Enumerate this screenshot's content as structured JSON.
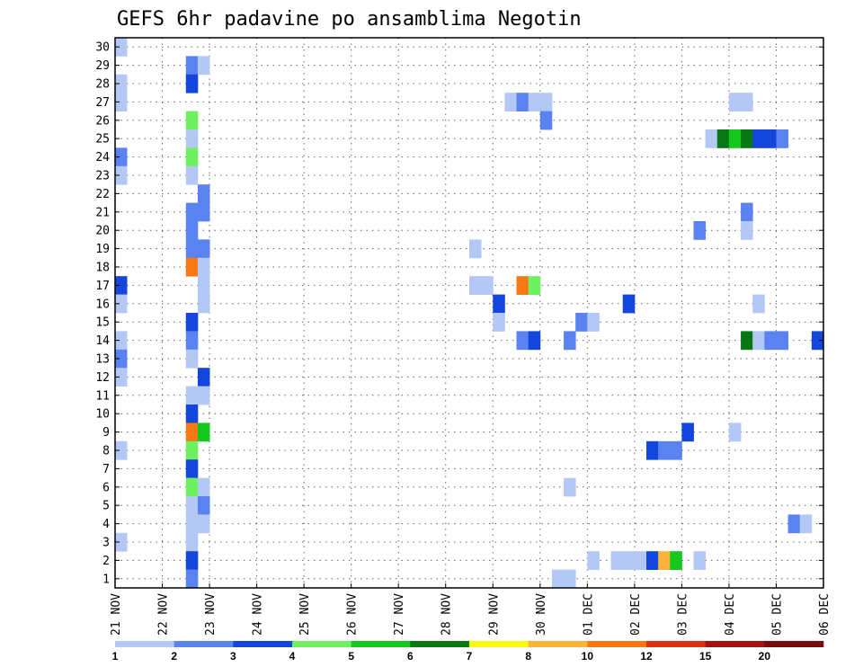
{
  "chart_data": {
    "type": "heatmap",
    "title": "GEFS 6hr padavine po ansamblima Negotin",
    "xlabel": "",
    "ylabel": "",
    "x_tick_labels": [
      "21 NOV",
      "22 NOV",
      "23 NOV",
      "24 NOV",
      "25 NOV",
      "26 NOV",
      "27 NOV",
      "28 NOV",
      "29 NOV",
      "30 NOV",
      "01 DEC",
      "02 DEC",
      "03 DEC",
      "04 DEC",
      "05 DEC",
      "06 DEC"
    ],
    "x_range_steps": [
      0,
      60
    ],
    "y_tick_labels": [
      1,
      2,
      3,
      4,
      5,
      6,
      7,
      8,
      9,
      10,
      11,
      12,
      13,
      14,
      15,
      16,
      17,
      18,
      19,
      20,
      21,
      22,
      23,
      24,
      25,
      26,
      27,
      28,
      29,
      30
    ],
    "y_range": [
      0,
      30
    ],
    "grid": true,
    "legend": {
      "placement": "bottom",
      "labels": [
        "1",
        "2",
        "3",
        "4",
        "5",
        "6",
        "7",
        "8",
        "10",
        "12",
        "15",
        "20"
      ],
      "colors": [
        "#b4c8f5",
        "#5a82f0",
        "#1446dc",
        "#6ef060",
        "#14c81e",
        "#087814",
        "#fafa14",
        "#fab43c",
        "#f57814",
        "#dc3214",
        "#a01414",
        "#780a0a"
      ]
    },
    "cells": [
      {
        "member": 30,
        "step": 1,
        "level": 1
      },
      {
        "member": 29,
        "step": 7,
        "level": 2
      },
      {
        "member": 29,
        "step": 8,
        "level": 1
      },
      {
        "member": 28,
        "step": 1,
        "level": 1
      },
      {
        "member": 28,
        "step": 7,
        "level": 3
      },
      {
        "member": 27,
        "step": 1,
        "level": 1
      },
      {
        "member": 27,
        "step": 34,
        "level": 1
      },
      {
        "member": 27,
        "step": 35,
        "level": 2
      },
      {
        "member": 27,
        "step": 36,
        "level": 1
      },
      {
        "member": 27,
        "step": 37,
        "level": 1
      },
      {
        "member": 27,
        "step": 53,
        "level": 1
      },
      {
        "member": 27,
        "step": 54,
        "level": 1
      },
      {
        "member": 26,
        "step": 7,
        "level": 4
      },
      {
        "member": 26,
        "step": 37,
        "level": 2
      },
      {
        "member": 25,
        "step": 7,
        "level": 1
      },
      {
        "member": 25,
        "step": 51,
        "level": 1
      },
      {
        "member": 25,
        "step": 52,
        "level": 6
      },
      {
        "member": 25,
        "step": 53,
        "level": 5
      },
      {
        "member": 25,
        "step": 54,
        "level": 6
      },
      {
        "member": 25,
        "step": 55,
        "level": 3
      },
      {
        "member": 25,
        "step": 56,
        "level": 3
      },
      {
        "member": 25,
        "step": 57,
        "level": 2
      },
      {
        "member": 24,
        "step": 1,
        "level": 2
      },
      {
        "member": 24,
        "step": 7,
        "level": 4
      },
      {
        "member": 23,
        "step": 1,
        "level": 1
      },
      {
        "member": 23,
        "step": 7,
        "level": 1
      },
      {
        "member": 22,
        "step": 8,
        "level": 2
      },
      {
        "member": 21,
        "step": 7,
        "level": 2
      },
      {
        "member": 21,
        "step": 8,
        "level": 2
      },
      {
        "member": 21,
        "step": 54,
        "level": 2
      },
      {
        "member": 20,
        "step": 7,
        "level": 2
      },
      {
        "member": 20,
        "step": 54,
        "level": 1
      },
      {
        "member": 20,
        "step": 50,
        "level": 2
      },
      {
        "member": 19,
        "step": 7,
        "level": 2
      },
      {
        "member": 19,
        "step": 8,
        "level": 2
      },
      {
        "member": 19,
        "step": 31,
        "level": 1
      },
      {
        "member": 18,
        "step": 7,
        "level": 9
      },
      {
        "member": 18,
        "step": 8,
        "level": 1
      },
      {
        "member": 17,
        "step": 1,
        "level": 3
      },
      {
        "member": 17,
        "step": 8,
        "level": 1
      },
      {
        "member": 17,
        "step": 31,
        "level": 1
      },
      {
        "member": 17,
        "step": 32,
        "level": 1
      },
      {
        "member": 17,
        "step": 35,
        "level": 9
      },
      {
        "member": 17,
        "step": 36,
        "level": 4
      },
      {
        "member": 16,
        "step": 1,
        "level": 1
      },
      {
        "member": 16,
        "step": 8,
        "level": 1
      },
      {
        "member": 16,
        "step": 33,
        "level": 3
      },
      {
        "member": 16,
        "step": 44,
        "level": 3
      },
      {
        "member": 16,
        "step": 55,
        "level": 1
      },
      {
        "member": 15,
        "step": 7,
        "level": 3
      },
      {
        "member": 15,
        "step": 33,
        "level": 1
      },
      {
        "member": 15,
        "step": 40,
        "level": 2
      },
      {
        "member": 15,
        "step": 41,
        "level": 1
      },
      {
        "member": 14,
        "step": 1,
        "level": 1
      },
      {
        "member": 14,
        "step": 7,
        "level": 2
      },
      {
        "member": 14,
        "step": 35,
        "level": 2
      },
      {
        "member": 14,
        "step": 36,
        "level": 3
      },
      {
        "member": 14,
        "step": 39,
        "level": 2
      },
      {
        "member": 14,
        "step": 54,
        "level": 6
      },
      {
        "member": 14,
        "step": 55,
        "level": 1
      },
      {
        "member": 14,
        "step": 56,
        "level": 2
      },
      {
        "member": 14,
        "step": 57,
        "level": 2
      },
      {
        "member": 14,
        "step": 60,
        "level": 3
      },
      {
        "member": 13,
        "step": 1,
        "level": 2
      },
      {
        "member": 13,
        "step": 7,
        "level": 1
      },
      {
        "member": 12,
        "step": 1,
        "level": 1
      },
      {
        "member": 12,
        "step": 8,
        "level": 3
      },
      {
        "member": 11,
        "step": 7,
        "level": 1
      },
      {
        "member": 11,
        "step": 8,
        "level": 1
      },
      {
        "member": 10,
        "step": 7,
        "level": 3
      },
      {
        "member": 9,
        "step": 7,
        "level": 9
      },
      {
        "member": 9,
        "step": 8,
        "level": 5
      },
      {
        "member": 9,
        "step": 49,
        "level": 3
      },
      {
        "member": 9,
        "step": 53,
        "level": 1
      },
      {
        "member": 8,
        "step": 1,
        "level": 1
      },
      {
        "member": 8,
        "step": 7,
        "level": 4
      },
      {
        "member": 8,
        "step": 46,
        "level": 3
      },
      {
        "member": 8,
        "step": 47,
        "level": 2
      },
      {
        "member": 8,
        "step": 48,
        "level": 2
      },
      {
        "member": 7,
        "step": 7,
        "level": 3
      },
      {
        "member": 6,
        "step": 7,
        "level": 4
      },
      {
        "member": 6,
        "step": 8,
        "level": 1
      },
      {
        "member": 6,
        "step": 39,
        "level": 1
      },
      {
        "member": 5,
        "step": 7,
        "level": 1
      },
      {
        "member": 5,
        "step": 8,
        "level": 2
      },
      {
        "member": 4,
        "step": 7,
        "level": 1
      },
      {
        "member": 4,
        "step": 8,
        "level": 1
      },
      {
        "member": 4,
        "step": 58,
        "level": 2
      },
      {
        "member": 4,
        "step": 59,
        "level": 1
      },
      {
        "member": 3,
        "step": 1,
        "level": 1
      },
      {
        "member": 3,
        "step": 7,
        "level": 1
      },
      {
        "member": 2,
        "step": 7,
        "level": 3
      },
      {
        "member": 2,
        "step": 41,
        "level": 1
      },
      {
        "member": 2,
        "step": 43,
        "level": 1
      },
      {
        "member": 2,
        "step": 44,
        "level": 1
      },
      {
        "member": 2,
        "step": 45,
        "level": 1
      },
      {
        "member": 2,
        "step": 46,
        "level": 3
      },
      {
        "member": 2,
        "step": 47,
        "level": 8
      },
      {
        "member": 2,
        "step": 48,
        "level": 5
      },
      {
        "member": 2,
        "step": 50,
        "level": 1
      },
      {
        "member": 1,
        "step": 7,
        "level": 2
      },
      {
        "member": 1,
        "step": 38,
        "level": 1
      },
      {
        "member": 1,
        "step": 39,
        "level": 1
      }
    ]
  }
}
